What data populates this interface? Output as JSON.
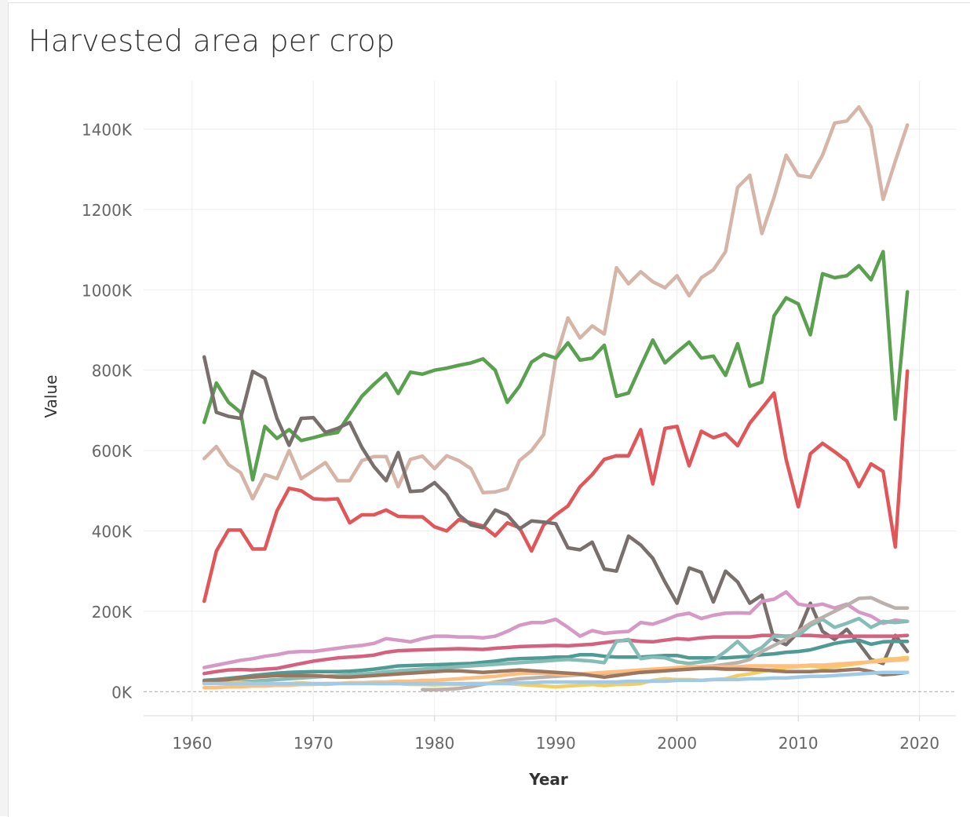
{
  "title": "Harvested area per crop",
  "chart_data": {
    "type": "line",
    "title": "Harvested area per crop",
    "xlabel": "Year",
    "ylabel": "Value",
    "xlim": [
      1956,
      2023
    ],
    "ylim": [
      -60000,
      1520000
    ],
    "x_ticks": [
      1960,
      1970,
      1980,
      1990,
      2000,
      2010,
      2020
    ],
    "y_ticks": [
      0,
      200000,
      400000,
      600000,
      800000,
      1000000,
      1200000,
      1400000
    ],
    "y_tick_labels": [
      "0K",
      "200K",
      "400K",
      "600K",
      "800K",
      "1000K",
      "1200K",
      "1400K"
    ],
    "grid": true,
    "legend": "none",
    "series": [
      {
        "color": "#d4b5a8",
        "start": 1961,
        "values": [
          580000,
          610000,
          565000,
          545000,
          480000,
          540000,
          530000,
          600000,
          530000,
          550000,
          570000,
          525000,
          525000,
          575000,
          585000,
          585000,
          510000,
          578000,
          586000,
          555000,
          587000,
          575000,
          555000,
          495000,
          497000,
          505000,
          575000,
          600000,
          640000,
          830000,
          930000,
          880000,
          910000,
          890000,
          1055000,
          1015000,
          1045000,
          1020000,
          1005000,
          1035000,
          985000,
          1030000,
          1050000,
          1095000,
          1255000,
          1285000,
          1140000,
          1230000,
          1335000,
          1285000,
          1280000,
          1335000,
          1415000,
          1420000,
          1455000,
          1405000,
          1225000,
          1320000,
          1410000
        ]
      },
      {
        "color": "#59a14f",
        "start": 1961,
        "values": [
          670000,
          768000,
          720000,
          695000,
          527000,
          660000,
          630000,
          652000,
          625000,
          632000,
          640000,
          645000,
          690000,
          735000,
          765000,
          792000,
          742000,
          795000,
          790000,
          800000,
          805000,
          812000,
          818000,
          828000,
          800000,
          720000,
          760000,
          820000,
          840000,
          830000,
          868000,
          825000,
          830000,
          862000,
          735000,
          743000,
          810000,
          875000,
          818000,
          845000,
          870000,
          830000,
          835000,
          787000,
          866000,
          760000,
          770000,
          935000,
          980000,
          965000,
          888000,
          1040000,
          1030000,
          1035000,
          1060000,
          1025000,
          1095000,
          678000,
          995000
        ]
      },
      {
        "color": "#e15759",
        "start": 1961,
        "values": [
          225000,
          350000,
          402000,
          402000,
          355000,
          355000,
          450000,
          506000,
          500000,
          480000,
          478000,
          480000,
          420000,
          440000,
          440000,
          452000,
          436000,
          435000,
          435000,
          410000,
          400000,
          428000,
          420000,
          412000,
          388000,
          420000,
          408000,
          350000,
          415000,
          440000,
          462000,
          510000,
          540000,
          578000,
          587000,
          587000,
          652000,
          517000,
          655000,
          660000,
          562000,
          648000,
          632000,
          642000,
          612000,
          668000,
          705000,
          743000,
          578000,
          460000,
          592000,
          618000,
          597000,
          574000,
          510000,
          567000,
          548000,
          360000,
          798000
        ]
      },
      {
        "color": "#79706e",
        "start": 1961,
        "values": [
          833000,
          695000,
          685000,
          680000,
          797000,
          780000,
          680000,
          613000,
          680000,
          682000,
          645000,
          655000,
          670000,
          608000,
          560000,
          525000,
          595000,
          498000,
          500000,
          520000,
          490000,
          440000,
          415000,
          408000,
          452000,
          440000,
          405000,
          425000,
          422000,
          418000,
          358000,
          353000,
          372000,
          305000,
          300000,
          387000,
          365000,
          332000,
          273000,
          220000,
          308000,
          297000,
          223000,
          300000,
          273000,
          220000,
          240000,
          130000,
          117000,
          148000,
          220000,
          150000,
          130000,
          155000,
          120000,
          80000,
          70000,
          140000,
          100000
        ]
      },
      {
        "color": "#d699c5",
        "start": 1961,
        "values": [
          60000,
          66000,
          72000,
          78000,
          82000,
          88000,
          92000,
          98000,
          100000,
          100000,
          104000,
          108000,
          112000,
          115000,
          120000,
          132000,
          128000,
          124000,
          132000,
          138000,
          138000,
          136000,
          136000,
          134000,
          138000,
          150000,
          165000,
          172000,
          172000,
          180000,
          160000,
          138000,
          152000,
          145000,
          148000,
          150000,
          172000,
          168000,
          178000,
          190000,
          195000,
          182000,
          190000,
          195000,
          196000,
          195000,
          225000,
          230000,
          248000,
          218000,
          213000,
          218000,
          208000,
          218000,
          198000,
          188000,
          170000,
          178000,
          175000
        ]
      },
      {
        "color": "#d4627e",
        "start": 1961,
        "values": [
          45000,
          50000,
          54000,
          55000,
          54000,
          56000,
          58000,
          64000,
          70000,
          76000,
          80000,
          84000,
          86000,
          88000,
          91000,
          98000,
          102000,
          103000,
          104000,
          105000,
          106000,
          107000,
          106000,
          105000,
          108000,
          110000,
          112000,
          113000,
          114000,
          115000,
          114000,
          116000,
          118000,
          122000,
          126000,
          128000,
          125000,
          124000,
          128000,
          132000,
          130000,
          134000,
          136000,
          136000,
          136000,
          136000,
          140000,
          140000,
          138000,
          140000,
          140000,
          138000,
          138000,
          138000,
          138000,
          138000,
          138000,
          138000,
          140000
        ]
      },
      {
        "color": "#4e9a95",
        "start": 1961,
        "values": [
          28000,
          30000,
          33000,
          36000,
          40000,
          43000,
          46000,
          48000,
          49000,
          50000,
          50000,
          50000,
          51000,
          53000,
          56000,
          60000,
          64000,
          65000,
          66000,
          67000,
          68000,
          69000,
          70000,
          73000,
          76000,
          80000,
          82000,
          83000,
          84000,
          86000,
          86000,
          92000,
          92000,
          88000,
          86000,
          86000,
          86000,
          88000,
          90000,
          90000,
          84000,
          84000,
          84000,
          84000,
          86000,
          88000,
          92000,
          94000,
          98000,
          100000,
          104000,
          112000,
          120000,
          125000,
          128000,
          118000,
          124000,
          125000,
          125000
        ]
      },
      {
        "color": "#86bcb6",
        "start": 1961,
        "values": [
          20000,
          22000,
          24000,
          25000,
          26000,
          28000,
          30000,
          32000,
          34000,
          36000,
          38000,
          40000,
          42000,
          44000,
          46000,
          50000,
          52000,
          54000,
          56000,
          58000,
          60000,
          62000,
          64000,
          66000,
          68000,
          70000,
          72000,
          74000,
          76000,
          78000,
          80000,
          78000,
          76000,
          72000,
          125000,
          130000,
          82000,
          86000,
          84000,
          74000,
          70000,
          74000,
          78000,
          100000,
          125000,
          95000,
          110000,
          138000,
          138000,
          140000,
          165000,
          180000,
          160000,
          170000,
          182000,
          160000,
          175000,
          172000,
          175000
        ]
      },
      {
        "color": "#bab0ac",
        "start": 1979,
        "values": [
          5000,
          5000,
          6000,
          8000,
          12000,
          18000,
          24000,
          28000,
          32000,
          34000,
          36000,
          38000,
          40000,
          42000,
          44000,
          46000,
          48000,
          50000,
          52000,
          54000,
          56000,
          58000,
          60000,
          62000,
          64000,
          68000,
          72000,
          80000,
          100000,
          115000,
          130000,
          150000,
          170000,
          185000,
          200000,
          215000,
          232000,
          234000,
          220000,
          208000,
          208000
        ]
      },
      {
        "color": "#f1ce63",
        "start": 1961,
        "values": [
          22000,
          22000,
          24000,
          22000,
          20000,
          20000,
          18000,
          20000,
          22000,
          20000,
          18000,
          20000,
          22000,
          22000,
          20000,
          20000,
          20000,
          18000,
          18000,
          17000,
          18000,
          18000,
          20000,
          20000,
          22000,
          20000,
          18000,
          16000,
          14000,
          12000,
          14000,
          16000,
          18000,
          15000,
          18000,
          18000,
          20000,
          28000,
          32000,
          30000,
          30000,
          28000,
          30000,
          32000,
          40000,
          44000,
          50000,
          55000,
          60000,
          62000,
          64000,
          60000,
          62000,
          66000,
          70000,
          75000,
          80000,
          82000,
          85000
        ]
      },
      {
        "color": "#ffbe7d",
        "start": 1961,
        "values": [
          10000,
          10000,
          12000,
          12000,
          14000,
          14000,
          16000,
          16000,
          18000,
          18000,
          20000,
          20000,
          22000,
          22000,
          24000,
          24000,
          26000,
          26000,
          28000,
          28000,
          30000,
          32000,
          34000,
          36000,
          38000,
          42000,
          45000,
          46000,
          46000,
          44000,
          42000,
          44000,
          46000,
          48000,
          50000,
          52000,
          54000,
          56000,
          58000,
          60000,
          62000,
          62000,
          62000,
          62000,
          62000,
          64000,
          64000,
          64000,
          64000,
          64000,
          66000,
          66000,
          68000,
          70000,
          72000,
          74000,
          76000,
          78000,
          80000
        ]
      },
      {
        "color": "#9d7660",
        "start": 1961,
        "values": [
          26000,
          28000,
          30000,
          34000,
          36000,
          38000,
          40000,
          40000,
          40000,
          40000,
          38000,
          36000,
          36000,
          38000,
          40000,
          42000,
          44000,
          46000,
          48000,
          50000,
          52000,
          52000,
          50000,
          48000,
          50000,
          52000,
          54000,
          52000,
          50000,
          48000,
          46000,
          44000,
          40000,
          36000,
          40000,
          44000,
          48000,
          50000,
          52000,
          54000,
          56000,
          58000,
          58000,
          56000,
          56000,
          55000,
          54000,
          52000,
          50000,
          50000,
          50000,
          52000,
          52000,
          54000,
          56000,
          50000,
          42000,
          44000,
          48000
        ]
      },
      {
        "color": "#a0cbe8",
        "start": 1961,
        "values": [
          20000,
          20000,
          20000,
          20000,
          20000,
          20000,
          20000,
          20000,
          20000,
          20000,
          20000,
          20000,
          20000,
          20000,
          20000,
          20000,
          20000,
          20000,
          20000,
          20000,
          20000,
          20000,
          20000,
          20000,
          20000,
          20000,
          22000,
          22000,
          24000,
          24000,
          24000,
          24000,
          24000,
          24000,
          24000,
          26000,
          26000,
          26000,
          26000,
          28000,
          28000,
          28000,
          30000,
          30000,
          30000,
          32000,
          32000,
          34000,
          34000,
          36000,
          38000,
          38000,
          40000,
          42000,
          44000,
          46000,
          48000,
          48000,
          48000
        ]
      }
    ]
  }
}
